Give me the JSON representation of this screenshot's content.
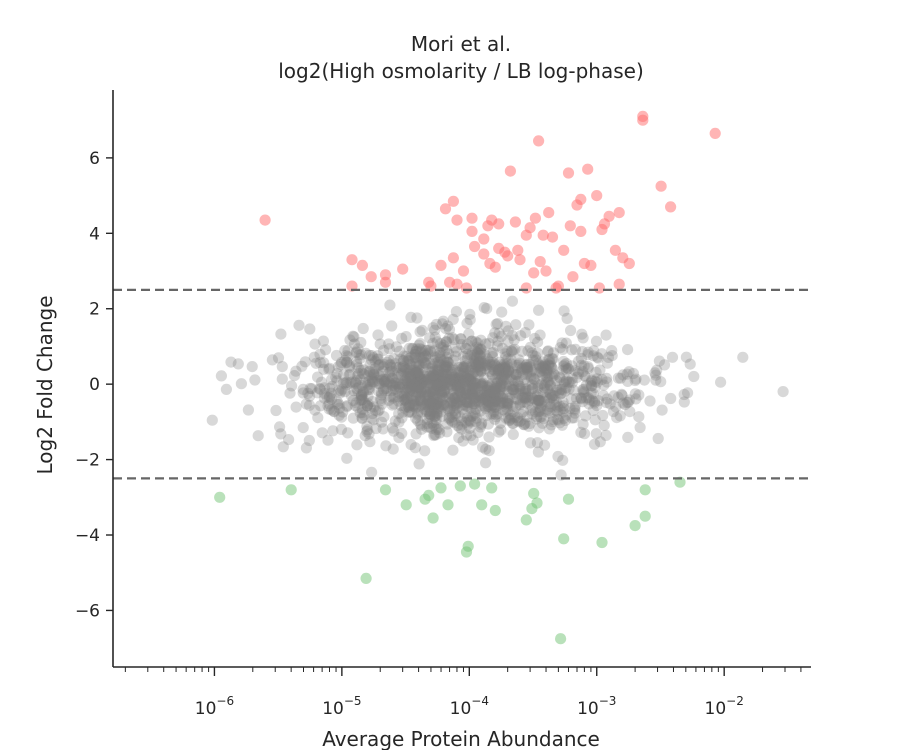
{
  "chart_data": {
    "type": "scatter",
    "title": "Mori et al.",
    "subtitle": "log2(High osmolarity / LB log-phase)",
    "xlabel": "Average Protein Abundance",
    "ylabel": "Log2 Fold Change",
    "x_scale": "log",
    "xlim": [
      1.6e-07,
      0.048
    ],
    "ylim": [
      -7.5,
      7.8
    ],
    "x_ticks": [
      {
        "value": 1e-06,
        "base": "10",
        "exp": "−6"
      },
      {
        "value": 1e-05,
        "base": "10",
        "exp": "−5"
      },
      {
        "value": 0.0001,
        "base": "10",
        "exp": "−4"
      },
      {
        "value": 0.001,
        "base": "10",
        "exp": "−3"
      },
      {
        "value": 0.01,
        "base": "10",
        "exp": "−2"
      }
    ],
    "y_ticks": [
      {
        "value": -6,
        "label": "−6"
      },
      {
        "value": -4,
        "label": "−4"
      },
      {
        "value": -2,
        "label": "−2"
      },
      {
        "value": 0,
        "label": "0"
      },
      {
        "value": 2,
        "label": "2"
      },
      {
        "value": 4,
        "label": "4"
      },
      {
        "value": 6,
        "label": "6"
      }
    ],
    "thresholds": [
      2.5,
      -2.5
    ],
    "grid": false,
    "colors": {
      "up": "#ff6b6b",
      "down": "#74c476",
      "neutral": "#7f7f7f",
      "threshold": "#666666"
    },
    "series": [
      {
        "group": "up",
        "points": [
          [
            2.5e-06,
            4.35
          ],
          [
            1.2e-05,
            3.3
          ],
          [
            1.45e-05,
            3.15
          ],
          [
            1.7e-05,
            2.85
          ],
          [
            2.2e-05,
            2.9
          ],
          [
            2.2e-05,
            2.7
          ],
          [
            1.2e-05,
            2.6
          ],
          [
            3e-05,
            3.05
          ],
          [
            4.8e-05,
            2.7
          ],
          [
            6e-05,
            3.15
          ],
          [
            7e-05,
            2.7
          ],
          [
            8e-05,
            2.65
          ],
          [
            7.5e-05,
            3.35
          ],
          [
            9e-05,
            3.0
          ],
          [
            6.5e-05,
            4.65
          ],
          [
            7.5e-05,
            4.85
          ],
          [
            0.000105,
            4.05
          ],
          [
            0.00011,
            3.65
          ],
          [
            0.00013,
            3.85
          ],
          [
            0.00014,
            4.2
          ],
          [
            0.00015,
            4.35
          ],
          [
            0.00013,
            3.45
          ],
          [
            0.000145,
            3.2
          ],
          [
            0.00016,
            3.1
          ],
          [
            0.00017,
            3.6
          ],
          [
            0.00019,
            3.5
          ],
          [
            0.0002,
            3.4
          ],
          [
            0.00021,
            5.65
          ],
          [
            0.00023,
            4.3
          ],
          [
            0.00024,
            3.55
          ],
          [
            0.00025,
            3.3
          ],
          [
            0.00028,
            3.95
          ],
          [
            0.0003,
            4.15
          ],
          [
            0.00032,
            2.95
          ],
          [
            0.00033,
            4.4
          ],
          [
            0.00035,
            6.45
          ],
          [
            0.00036,
            3.25
          ],
          [
            0.00038,
            3.95
          ],
          [
            0.0004,
            3.0
          ],
          [
            0.00042,
            4.55
          ],
          [
            0.00045,
            3.9
          ],
          [
            0.00048,
            2.55
          ],
          [
            0.0005,
            2.6
          ],
          [
            0.00055,
            3.55
          ],
          [
            0.0006,
            5.6
          ],
          [
            0.00062,
            4.2
          ],
          [
            0.00065,
            2.85
          ],
          [
            0.0007,
            4.75
          ],
          [
            0.00075,
            4.05
          ],
          [
            0.00075,
            4.9
          ],
          [
            0.0008,
            3.2
          ],
          [
            0.00085,
            5.7
          ],
          [
            0.0009,
            3.15
          ],
          [
            0.001,
            5.0
          ],
          [
            0.00105,
            2.55
          ],
          [
            0.0011,
            4.1
          ],
          [
            0.00115,
            4.25
          ],
          [
            0.00125,
            4.45
          ],
          [
            0.0014,
            3.55
          ],
          [
            0.0015,
            4.55
          ],
          [
            0.0016,
            3.35
          ],
          [
            0.0018,
            3.2
          ],
          [
            0.0015,
            2.65
          ],
          [
            0.0023,
            7.1
          ],
          [
            0.0023,
            7.0
          ],
          [
            0.0032,
            5.25
          ],
          [
            0.0038,
            4.7
          ],
          [
            0.0085,
            6.65
          ],
          [
            8e-05,
            4.35
          ],
          [
            0.000105,
            4.4
          ],
          [
            0.00017,
            4.25
          ],
          [
            0.00028,
            2.55
          ],
          [
            5e-05,
            2.6
          ],
          [
            9.5e-05,
            2.55
          ]
        ]
      },
      {
        "group": "down",
        "points": [
          [
            1.1e-06,
            -3.0
          ],
          [
            4e-06,
            -2.8
          ],
          [
            2.2e-05,
            -2.8
          ],
          [
            3.2e-05,
            -3.2
          ],
          [
            4.5e-05,
            -3.05
          ],
          [
            4.8e-05,
            -2.95
          ],
          [
            5.2e-05,
            -3.55
          ],
          [
            6e-05,
            -2.75
          ],
          [
            6.8e-05,
            -3.2
          ],
          [
            8.5e-05,
            -2.7
          ],
          [
            9.8e-05,
            -4.3
          ],
          [
            9.5e-05,
            -4.45
          ],
          [
            0.00011,
            -2.65
          ],
          [
            0.000125,
            -3.2
          ],
          [
            0.00015,
            -2.75
          ],
          [
            0.00016,
            -3.35
          ],
          [
            0.00028,
            -3.6
          ],
          [
            0.00031,
            -3.3
          ],
          [
            0.00032,
            -2.9
          ],
          [
            0.00034,
            -3.15
          ],
          [
            0.00055,
            -4.1
          ],
          [
            0.0006,
            -3.05
          ],
          [
            0.0011,
            -4.2
          ],
          [
            0.002,
            -3.75
          ],
          [
            0.0024,
            -3.5
          ],
          [
            0.0024,
            -2.8
          ],
          [
            0.0045,
            -2.6
          ],
          [
            1.55e-05,
            -5.15
          ],
          [
            0.00052,
            -6.75
          ]
        ]
      }
    ]
  }
}
